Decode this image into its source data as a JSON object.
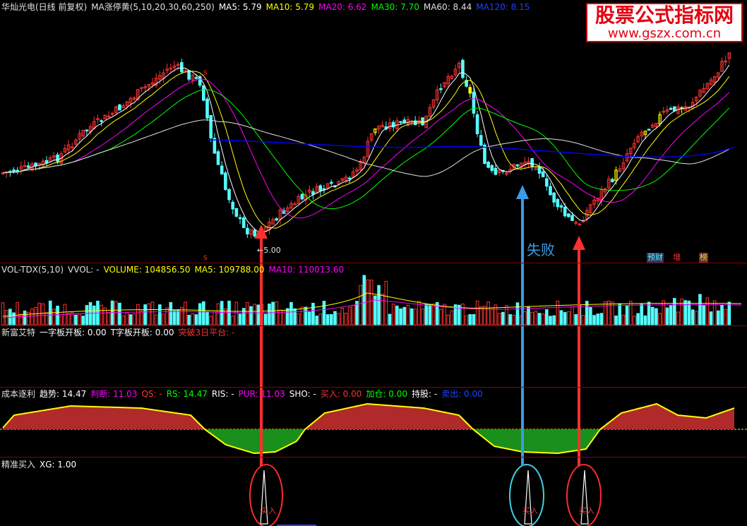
{
  "colors": {
    "up": "#ff3232",
    "down": "#54ffff",
    "yellowbar": "#ffff00",
    "ma5": "#ffffff",
    "ma10": "#ffff00",
    "ma20": "#ff00ff",
    "ma30": "#00ff00",
    "ma60": "#e0e0e0",
    "ma120": "#0000ff",
    "vol": "#ff3232",
    "cost_red": "#b02a2a",
    "cost_green": "#1b8f1b",
    "arrow_red": "#ff3030",
    "arrow_blue": "#3a9be6",
    "circle_red": "#ff2a2a",
    "circle_cyan": "#40d0e0"
  },
  "panel1": {
    "title": "华灿光电(日线 前复权)",
    "ma_label": "MA涨停黄(5,10,20,30,60,250)",
    "ma5": "MA5: 5.79",
    "ma10": "MA10: 5.79",
    "ma20": "MA20: 6.62",
    "ma30": "MA30: 7.70",
    "ma60": "MA60: 8.44",
    "ma120": "MA120: 8.15",
    "low_label": "5.00",
    "fail_label": "失败",
    "badges": [
      "预财",
      "增",
      "榜"
    ]
  },
  "panel2": {
    "title": "VOL-TDX(5,10)",
    "vvol": "VVOL: -",
    "volume": "VOLUME: 104856.50",
    "ma5": "MA5: 109788.00",
    "ma10": "MA10: 110013.60"
  },
  "panel3": {
    "title": "新富艾特",
    "f1": "一字板开板: 0.00",
    "f2": "T字板开板: 0.00",
    "f3": "突破3日平台: -"
  },
  "panel4": {
    "title": "成本逐利",
    "trend": "趋势: 14.47",
    "judge": "判断: 11.03",
    "qs": "QS: -",
    "rs": "RS: 14.47",
    "ris": "RIS: -",
    "pur": "PUR: 11.03",
    "sho": "SHO: -",
    "buy": "买入: 0.00",
    "add": "加仓: 0.00",
    "hold": "持股: -",
    "sell": "卖出: 0.00"
  },
  "panel5": {
    "title": "精准买入",
    "xg": "XG: 1.00",
    "buy_tags": [
      "买入",
      "买入",
      "买入"
    ]
  },
  "brand": {
    "line1": "股票公式指标网",
    "line2": "www.gszx.com.cn"
  },
  "chart_data": {
    "type": "candlestick",
    "ylabel": "",
    "series": [
      {
        "name": "MA5",
        "last": 5.79
      },
      {
        "name": "MA10",
        "last": 5.79
      },
      {
        "name": "MA20",
        "last": 6.62
      },
      {
        "name": "MA30",
        "last": 7.7
      },
      {
        "name": "MA60",
        "last": 8.44
      },
      {
        "name": "MA120",
        "last": 8.15
      },
      {
        "name": "VOLUME",
        "last": 104856.5
      },
      {
        "name": "VOL MA5",
        "last": 109788.0
      },
      {
        "name": "VOL MA10",
        "last": 110013.6
      },
      {
        "name": "趋势",
        "last": 14.47
      },
      {
        "name": "判断",
        "last": 11.03
      },
      {
        "name": "XG",
        "last": 1.0
      }
    ],
    "annotations": [
      "5.00",
      "失败"
    ],
    "buy_signals": 3
  }
}
